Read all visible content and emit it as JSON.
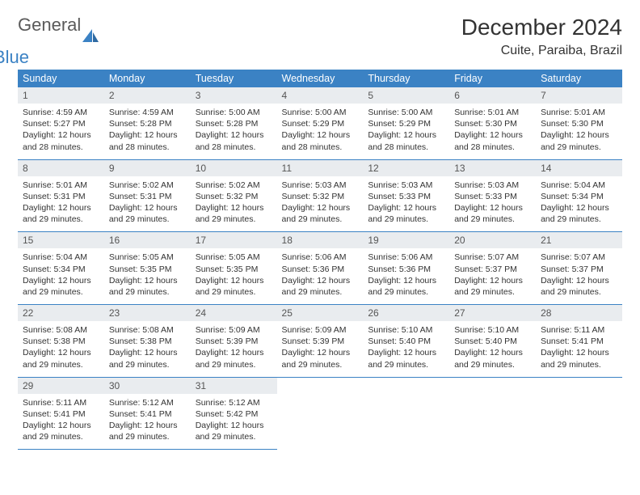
{
  "logo": {
    "general": "General",
    "blue": "Blue"
  },
  "header": {
    "month": "December 2024",
    "location": "Cuite, Paraiba, Brazil"
  },
  "colors": {
    "header_bg": "#3b82c4",
    "header_text": "#ffffff",
    "daynum_bg": "#e9ecef",
    "row_divider": "#3b82c4",
    "body_bg": "#ffffff",
    "text": "#333333"
  },
  "weekdays": [
    "Sunday",
    "Monday",
    "Tuesday",
    "Wednesday",
    "Thursday",
    "Friday",
    "Saturday"
  ],
  "labels": {
    "sunrise": "Sunrise:",
    "sunset": "Sunset:",
    "daylight": "Daylight:"
  },
  "weeks": [
    [
      {
        "n": "1",
        "sr": "4:59 AM",
        "ss": "5:27 PM",
        "dl": "12 hours and 28 minutes."
      },
      {
        "n": "2",
        "sr": "4:59 AM",
        "ss": "5:28 PM",
        "dl": "12 hours and 28 minutes."
      },
      {
        "n": "3",
        "sr": "5:00 AM",
        "ss": "5:28 PM",
        "dl": "12 hours and 28 minutes."
      },
      {
        "n": "4",
        "sr": "5:00 AM",
        "ss": "5:29 PM",
        "dl": "12 hours and 28 minutes."
      },
      {
        "n": "5",
        "sr": "5:00 AM",
        "ss": "5:29 PM",
        "dl": "12 hours and 28 minutes."
      },
      {
        "n": "6",
        "sr": "5:01 AM",
        "ss": "5:30 PM",
        "dl": "12 hours and 28 minutes."
      },
      {
        "n": "7",
        "sr": "5:01 AM",
        "ss": "5:30 PM",
        "dl": "12 hours and 29 minutes."
      }
    ],
    [
      {
        "n": "8",
        "sr": "5:01 AM",
        "ss": "5:31 PM",
        "dl": "12 hours and 29 minutes."
      },
      {
        "n": "9",
        "sr": "5:02 AM",
        "ss": "5:31 PM",
        "dl": "12 hours and 29 minutes."
      },
      {
        "n": "10",
        "sr": "5:02 AM",
        "ss": "5:32 PM",
        "dl": "12 hours and 29 minutes."
      },
      {
        "n": "11",
        "sr": "5:03 AM",
        "ss": "5:32 PM",
        "dl": "12 hours and 29 minutes."
      },
      {
        "n": "12",
        "sr": "5:03 AM",
        "ss": "5:33 PM",
        "dl": "12 hours and 29 minutes."
      },
      {
        "n": "13",
        "sr": "5:03 AM",
        "ss": "5:33 PM",
        "dl": "12 hours and 29 minutes."
      },
      {
        "n": "14",
        "sr": "5:04 AM",
        "ss": "5:34 PM",
        "dl": "12 hours and 29 minutes."
      }
    ],
    [
      {
        "n": "15",
        "sr": "5:04 AM",
        "ss": "5:34 PM",
        "dl": "12 hours and 29 minutes."
      },
      {
        "n": "16",
        "sr": "5:05 AM",
        "ss": "5:35 PM",
        "dl": "12 hours and 29 minutes."
      },
      {
        "n": "17",
        "sr": "5:05 AM",
        "ss": "5:35 PM",
        "dl": "12 hours and 29 minutes."
      },
      {
        "n": "18",
        "sr": "5:06 AM",
        "ss": "5:36 PM",
        "dl": "12 hours and 29 minutes."
      },
      {
        "n": "19",
        "sr": "5:06 AM",
        "ss": "5:36 PM",
        "dl": "12 hours and 29 minutes."
      },
      {
        "n": "20",
        "sr": "5:07 AM",
        "ss": "5:37 PM",
        "dl": "12 hours and 29 minutes."
      },
      {
        "n": "21",
        "sr": "5:07 AM",
        "ss": "5:37 PM",
        "dl": "12 hours and 29 minutes."
      }
    ],
    [
      {
        "n": "22",
        "sr": "5:08 AM",
        "ss": "5:38 PM",
        "dl": "12 hours and 29 minutes."
      },
      {
        "n": "23",
        "sr": "5:08 AM",
        "ss": "5:38 PM",
        "dl": "12 hours and 29 minutes."
      },
      {
        "n": "24",
        "sr": "5:09 AM",
        "ss": "5:39 PM",
        "dl": "12 hours and 29 minutes."
      },
      {
        "n": "25",
        "sr": "5:09 AM",
        "ss": "5:39 PM",
        "dl": "12 hours and 29 minutes."
      },
      {
        "n": "26",
        "sr": "5:10 AM",
        "ss": "5:40 PM",
        "dl": "12 hours and 29 minutes."
      },
      {
        "n": "27",
        "sr": "5:10 AM",
        "ss": "5:40 PM",
        "dl": "12 hours and 29 minutes."
      },
      {
        "n": "28",
        "sr": "5:11 AM",
        "ss": "5:41 PM",
        "dl": "12 hours and 29 minutes."
      }
    ],
    [
      {
        "n": "29",
        "sr": "5:11 AM",
        "ss": "5:41 PM",
        "dl": "12 hours and 29 minutes."
      },
      {
        "n": "30",
        "sr": "5:12 AM",
        "ss": "5:41 PM",
        "dl": "12 hours and 29 minutes."
      },
      {
        "n": "31",
        "sr": "5:12 AM",
        "ss": "5:42 PM",
        "dl": "12 hours and 29 minutes."
      },
      null,
      null,
      null,
      null
    ]
  ]
}
